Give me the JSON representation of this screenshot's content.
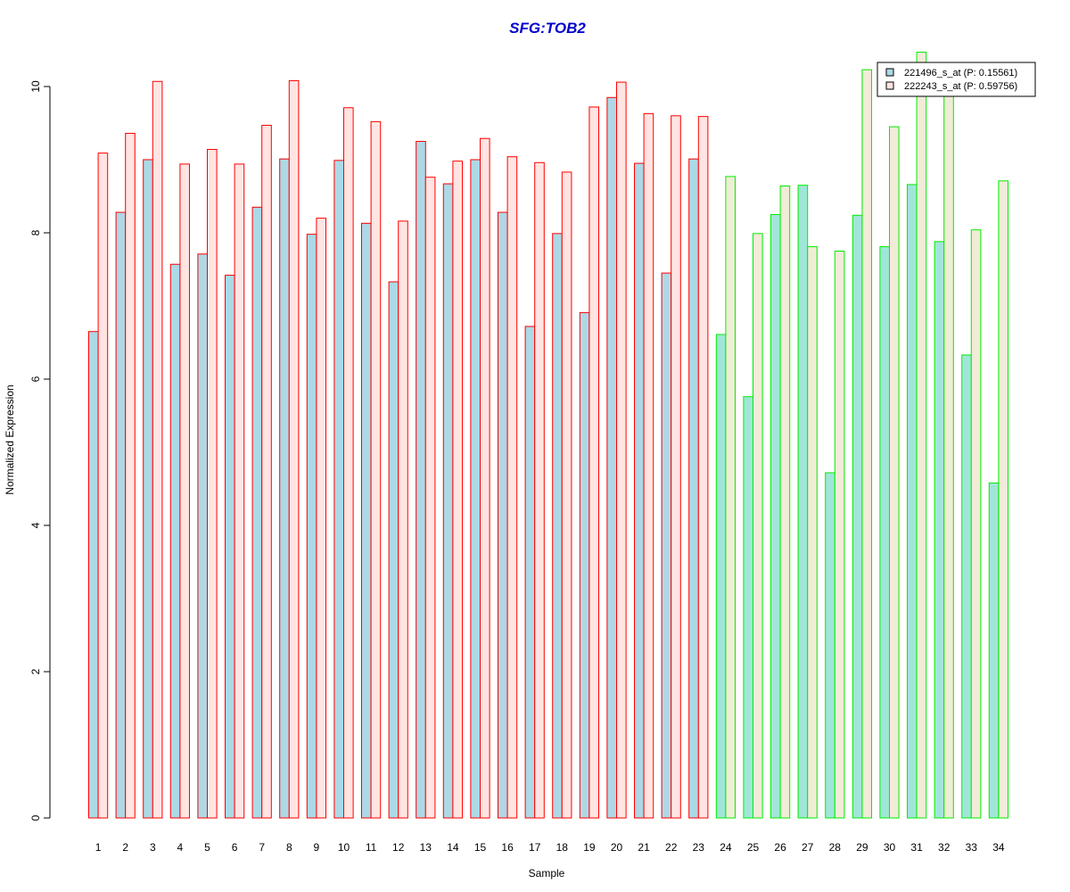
{
  "chart_data": {
    "type": "bar",
    "title": "SFG:TOB2",
    "xlabel": "Sample",
    "ylabel": "Normalized Expression",
    "ylim": [
      0,
      10
    ],
    "yticks": [
      0,
      2,
      4,
      6,
      8,
      10
    ],
    "categories": [
      "1",
      "2",
      "3",
      "4",
      "5",
      "6",
      "7",
      "8",
      "9",
      "10",
      "11",
      "12",
      "13",
      "14",
      "15",
      "16",
      "17",
      "18",
      "19",
      "20",
      "21",
      "22",
      "23",
      "24",
      "25",
      "26",
      "27",
      "28",
      "29",
      "30",
      "31",
      "32",
      "33",
      "34"
    ],
    "series": [
      {
        "name": "221496_s_at (P: 0.15561)",
        "values": [
          6.65,
          8.28,
          9.0,
          7.57,
          7.71,
          7.42,
          8.35,
          9.01,
          7.98,
          8.99,
          8.13,
          7.33,
          9.25,
          8.67,
          9.0,
          8.28,
          6.72,
          7.99,
          6.91,
          9.85,
          8.95,
          7.45,
          9.01,
          6.61,
          5.76,
          8.25,
          8.65,
          4.72,
          8.24,
          7.81,
          8.66,
          7.88,
          6.33,
          4.58
        ]
      },
      {
        "name": "222243_s_at (P: 0.59756)",
        "values": [
          9.09,
          9.36,
          10.07,
          8.94,
          9.14,
          8.94,
          9.47,
          10.08,
          8.2,
          9.71,
          9.52,
          8.16,
          8.76,
          8.98,
          9.29,
          9.04,
          8.96,
          8.83,
          9.72,
          10.06,
          9.63,
          9.6,
          9.59,
          8.77,
          7.99,
          8.64,
          7.81,
          7.75,
          10.23,
          9.45,
          10.47,
          9.9,
          8.04,
          8.71
        ]
      }
    ],
    "groups": [
      {
        "from": 1,
        "to": 23,
        "border": "#ff0000",
        "fill_series1": "#add8e6",
        "fill_series2": "#ffe4e1"
      },
      {
        "from": 24,
        "to": 34,
        "border": "#00ee00",
        "fill_series1": "#a0e6d8",
        "fill_series2": "#f0ecd6"
      }
    ],
    "legend": {
      "position": "top-right",
      "swatch_colors": [
        "#add8e6",
        "#ffe4e1"
      ]
    },
    "title_color": "#0000cd"
  }
}
